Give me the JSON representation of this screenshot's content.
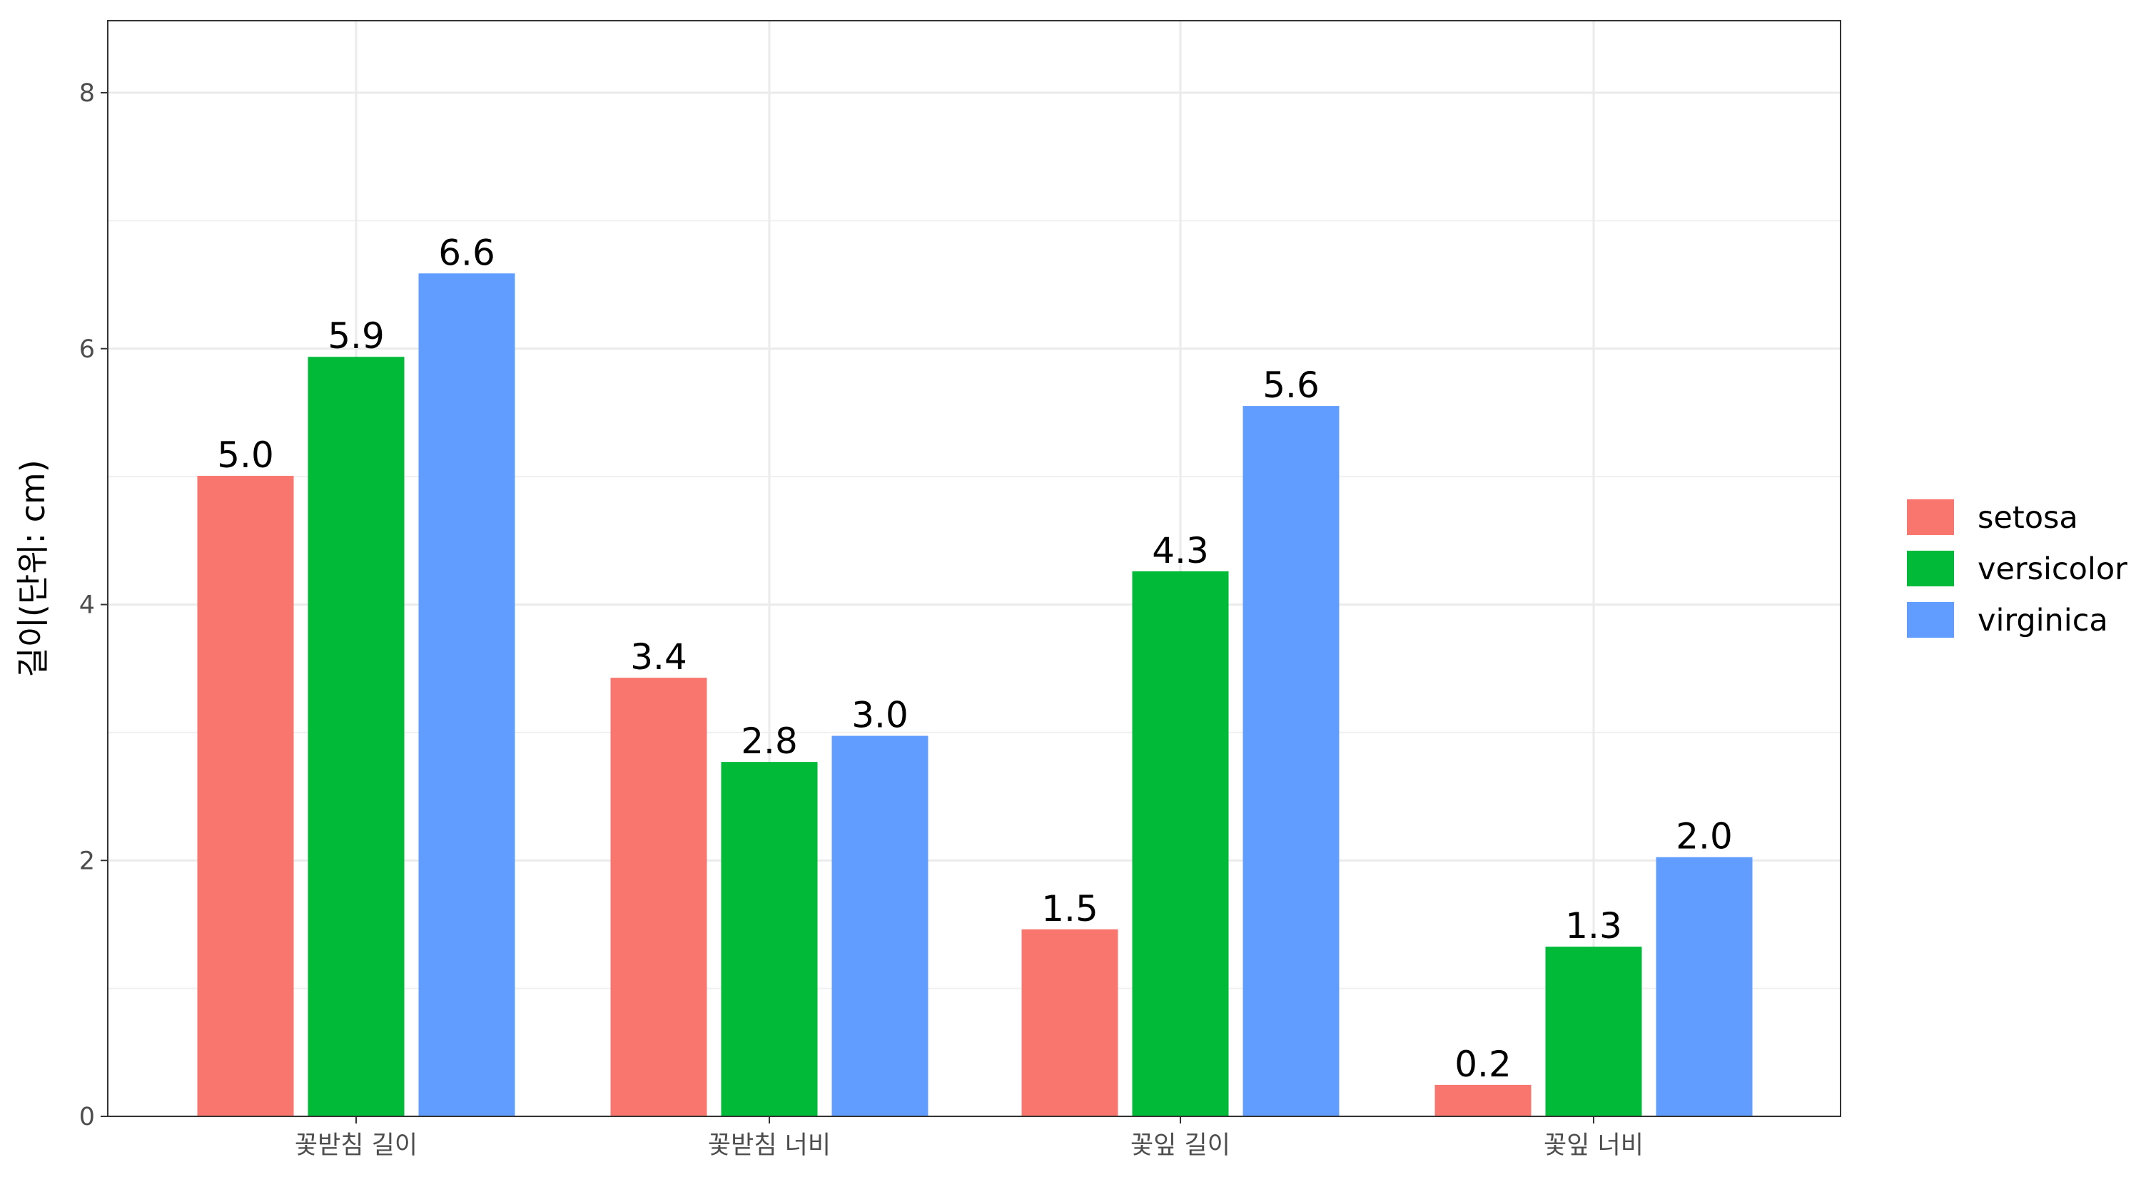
{
  "chart_data": {
    "type": "bar",
    "title": "",
    "xlabel": "",
    "ylabel": "길이(단위: cm)",
    "ylim": [
      0,
      8.5
    ],
    "yticks": [
      0,
      2,
      4,
      6,
      8
    ],
    "grid": true,
    "legend_position": "right",
    "categories": [
      "꽃받침 길이",
      "꽃받침 너비",
      "꽃잎 길이",
      "꽃잎 너비"
    ],
    "series": [
      {
        "name": "setosa",
        "color": "#F8766D",
        "values": [
          5.006,
          3.428,
          1.462,
          0.246
        ],
        "labels": [
          "5.0",
          "3.4",
          "1.5",
          "0.2"
        ]
      },
      {
        "name": "versicolor",
        "color": "#00BA38",
        "values": [
          5.936,
          2.77,
          4.26,
          1.326
        ],
        "labels": [
          "5.9",
          "2.8",
          "4.3",
          "1.3"
        ]
      },
      {
        "name": "virginica",
        "color": "#619CFF",
        "values": [
          6.588,
          2.974,
          5.552,
          2.026
        ],
        "labels": [
          "6.6",
          "3.0",
          "5.6",
          "2.0"
        ]
      }
    ]
  }
}
